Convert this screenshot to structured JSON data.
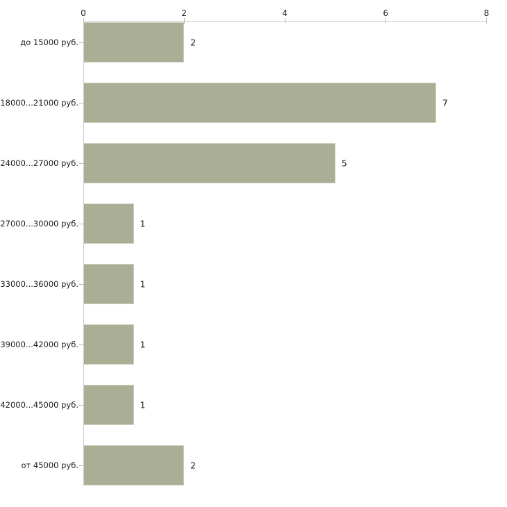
{
  "chart_data": {
    "type": "bar",
    "orientation": "horizontal",
    "title": "",
    "xlabel": "",
    "ylabel": "",
    "categories": [
      "до 15000 руб.",
      "18000...21000 руб.",
      "24000...27000 руб.",
      "27000...30000 руб.",
      "33000...36000 руб.",
      "39000...42000 руб.",
      "42000...45000 руб.",
      "от 45000 руб."
    ],
    "values": [
      2,
      7,
      5,
      1,
      1,
      1,
      1,
      2
    ],
    "value_labels": [
      "2",
      "7",
      "5",
      "1",
      "1",
      "1",
      "1",
      "2"
    ],
    "xlim": [
      0,
      8
    ],
    "x_ticks": [
      0,
      2,
      4,
      6,
      8
    ],
    "x_tick_labels": [
      "0",
      "2",
      "4",
      "6",
      "8"
    ],
    "grid": false,
    "legend": false,
    "axis_position": "top",
    "colors": {
      "bar_fill": "#a9ae94",
      "bar_edge": "#ced1c0",
      "axis_line": "#c8c8c8",
      "tick_mark": "#c2c39c",
      "category_tick": "#b9b9b9",
      "text": "#1c1c1c",
      "background": "#ffffff"
    }
  }
}
